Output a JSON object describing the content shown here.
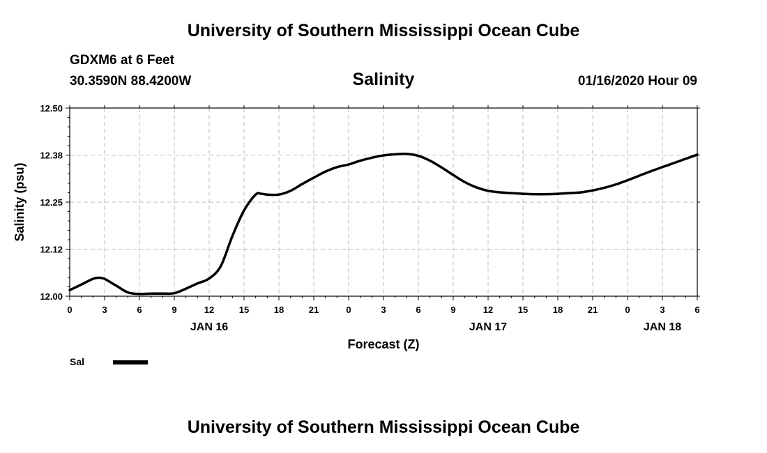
{
  "header": {
    "title": "University of Southern Mississippi Ocean Cube",
    "station": "GDXM6 at 6 Feet",
    "coords": "30.3590N 88.4200W",
    "timestamp": "01/16/2020 Hour 09"
  },
  "footer": {
    "title": "University of Southern Mississippi Ocean Cube"
  },
  "chart_data": {
    "type": "line",
    "title": "Salinity",
    "xlabel": "Forecast (Z)",
    "ylabel": "Salinity (psu)",
    "xlim": [
      0,
      54
    ],
    "ylim": [
      12.0,
      12.5
    ],
    "grid": true,
    "x_ticks": [
      0,
      3,
      6,
      9,
      12,
      15,
      18,
      21,
      24,
      27,
      30,
      33,
      36,
      39,
      42,
      45,
      48,
      51,
      54
    ],
    "x_tick_labels": [
      "0",
      "3",
      "6",
      "9",
      "12",
      "15",
      "18",
      "21",
      "0",
      "3",
      "6",
      "9",
      "12",
      "15",
      "18",
      "21",
      "0",
      "3",
      "6"
    ],
    "y_ticks": [
      12.0,
      12.125,
      12.25,
      12.375,
      12.5
    ],
    "y_tick_labels": [
      "12.00",
      "12.12",
      "12.25",
      "12.38",
      "12.50"
    ],
    "date_labels": [
      {
        "x": 12,
        "label": "JAN 16"
      },
      {
        "x": 36,
        "label": "JAN 17"
      },
      {
        "x": 51,
        "label": "JAN 18"
      }
    ],
    "legend": {
      "position": "bottom-left",
      "label": "Sal"
    },
    "series": [
      {
        "name": "Sal",
        "color": "#000000",
        "x": [
          0,
          1,
          2,
          2.5,
          3,
          4,
          5,
          6,
          7,
          8,
          9,
          10,
          11,
          12,
          13,
          14,
          15,
          16,
          16.5,
          17,
          18,
          19,
          20,
          21,
          22,
          23,
          24,
          25,
          26,
          27,
          28,
          29,
          30,
          31,
          32,
          33,
          34,
          35,
          36,
          37,
          38,
          39,
          40,
          41,
          42,
          43,
          44,
          45,
          46,
          47,
          48,
          49,
          50,
          51,
          52,
          53,
          54
        ],
        "values": [
          12.016,
          12.031,
          12.046,
          12.049,
          12.046,
          12.028,
          12.01,
          12.006,
          12.007,
          12.007,
          12.008,
          12.02,
          12.034,
          12.047,
          12.08,
          12.16,
          12.228,
          12.27,
          12.272,
          12.27,
          12.27,
          12.28,
          12.298,
          12.315,
          12.331,
          12.343,
          12.35,
          12.36,
          12.368,
          12.374,
          12.377,
          12.378,
          12.373,
          12.36,
          12.342,
          12.322,
          12.303,
          12.289,
          12.28,
          12.276,
          12.274,
          12.272,
          12.271,
          12.271,
          12.272,
          12.274,
          12.276,
          12.281,
          12.288,
          12.297,
          12.308,
          12.32,
          12.332,
          12.343,
          12.354,
          12.365,
          12.376
        ]
      }
    ]
  }
}
